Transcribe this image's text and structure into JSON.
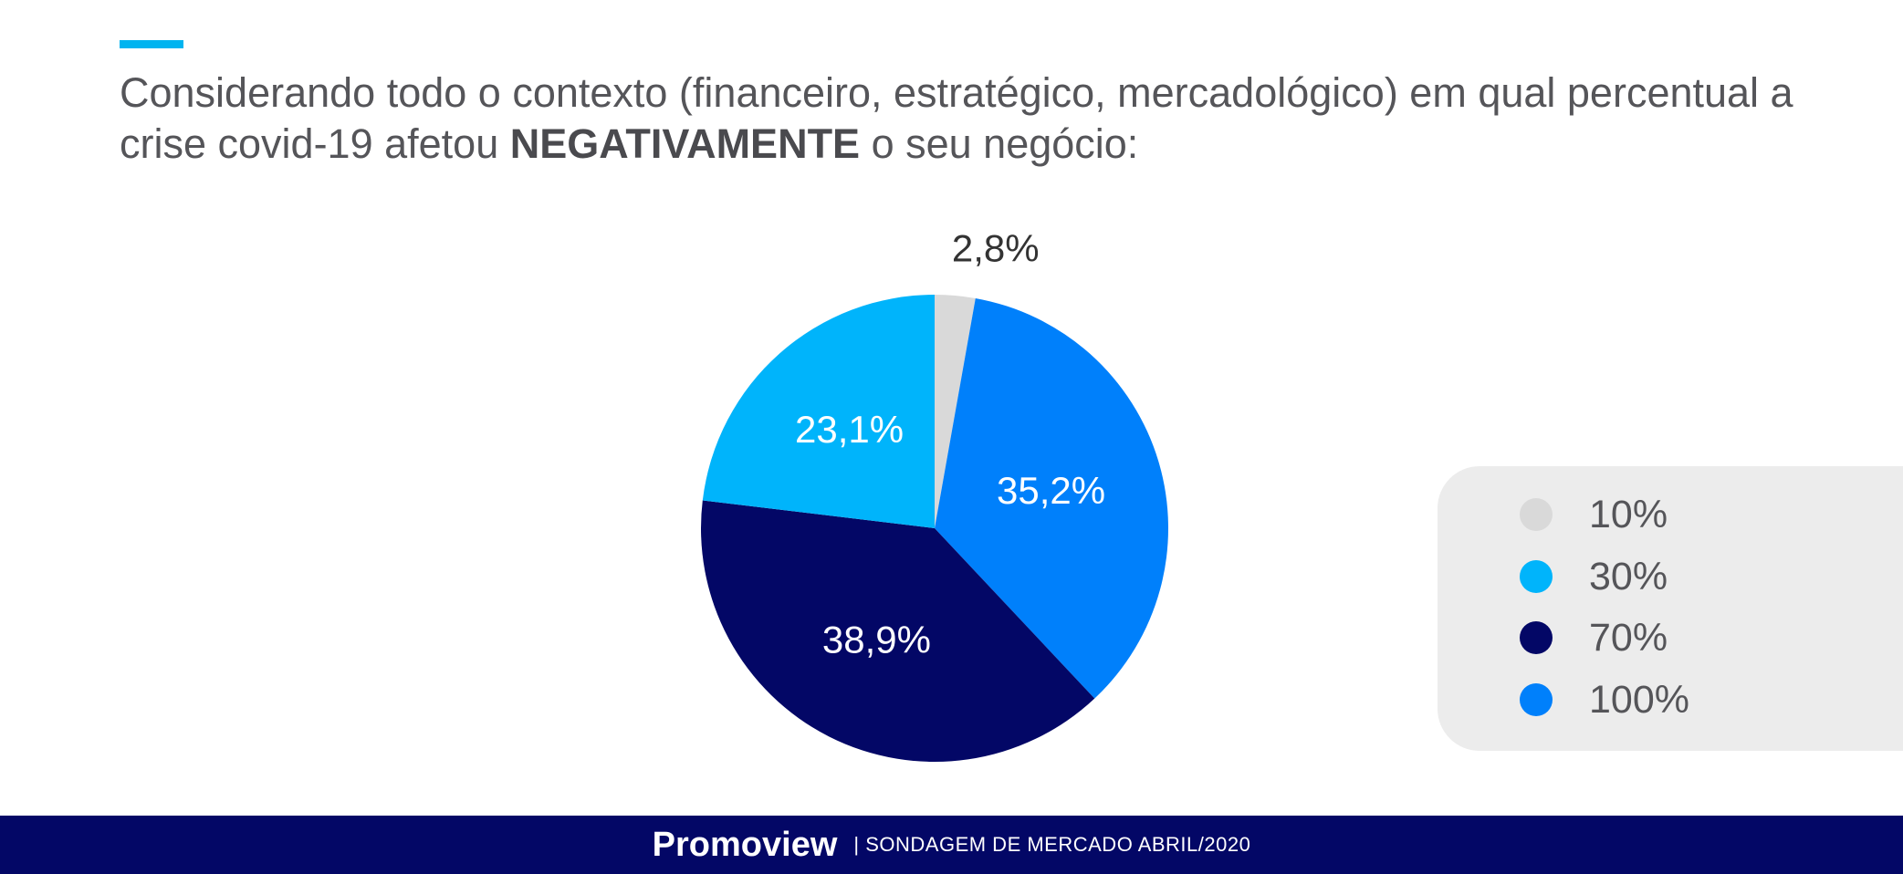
{
  "header": {
    "title_part1": "Considerando todo o contexto (financeiro, estratégico, mercadológico) em qual percentual a crise covid-19 afetou ",
    "title_emphasis": "NEGATIVAMENTE",
    "title_part2": " o seu negócio:"
  },
  "chart_data": {
    "type": "pie",
    "categories": [
      "10%",
      "30%",
      "70%",
      "100%"
    ],
    "values": [
      2.8,
      23.1,
      38.9,
      35.2
    ],
    "labels": [
      "2,8%",
      "23,1%",
      "38,9%",
      "35,2%"
    ],
    "colors": [
      "#d9d9d9",
      "#00b4fb",
      "#030766",
      "#0080fb"
    ],
    "legend_position": "right"
  },
  "footer": {
    "brand": "Promoview",
    "subtitle": "| SONDAGEM DE MERCADO ABRIL/2020"
  }
}
